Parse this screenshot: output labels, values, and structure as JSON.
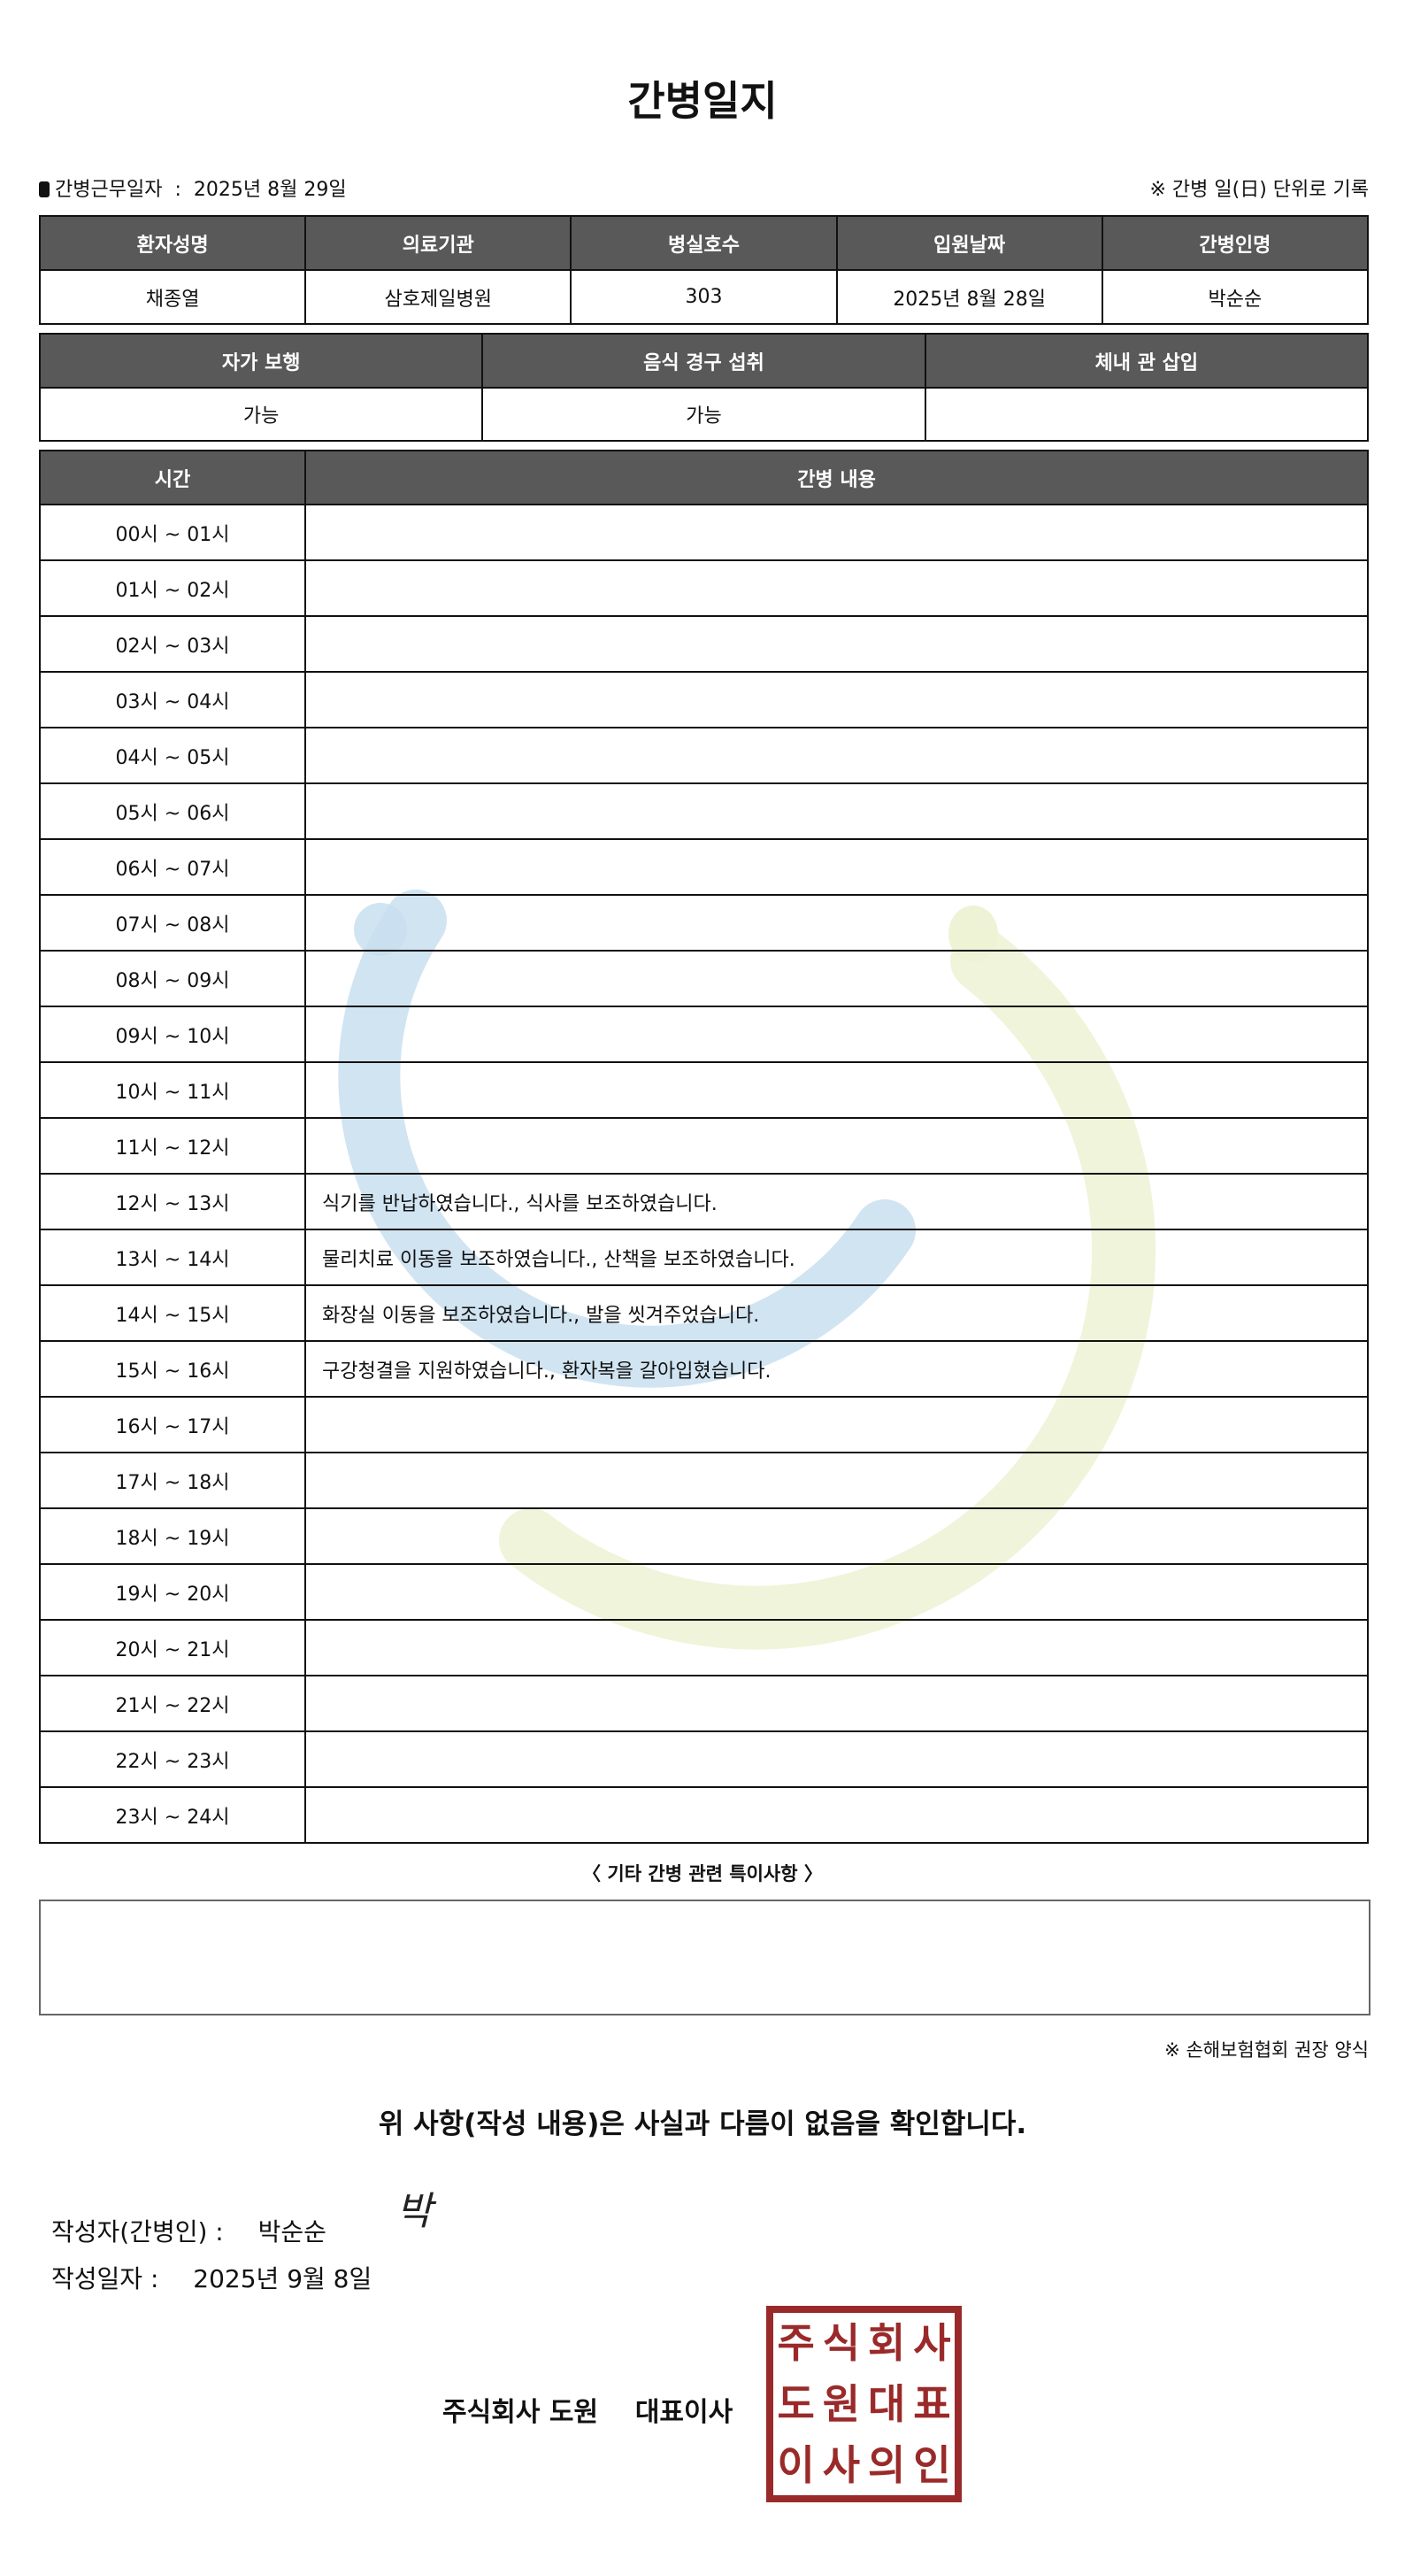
{
  "title": "간병일지",
  "info": {
    "label": "간병근무일자",
    "sep": ":",
    "value": "2025년 8월 29일",
    "note": "※ 간병 일(日) 단위로 기록"
  },
  "table1": {
    "headers": [
      "환자성명",
      "의료기관",
      "병실호수",
      "입원날짜",
      "간병인명"
    ],
    "values": [
      "채종열",
      "삼호제일병원",
      "303",
      "2025년 8월 28일",
      "박순순"
    ]
  },
  "table2": {
    "headers": [
      "자가 보행",
      "음식 경구 섭취",
      "체내 관 삽입"
    ],
    "values": [
      "가능",
      "가능",
      ""
    ]
  },
  "table3": {
    "headers": [
      "시간",
      "간병 내용"
    ],
    "rows": [
      {
        "time": "00시 ~ 01시",
        "content": ""
      },
      {
        "time": "01시 ~ 02시",
        "content": ""
      },
      {
        "time": "02시 ~ 03시",
        "content": ""
      },
      {
        "time": "03시 ~ 04시",
        "content": ""
      },
      {
        "time": "04시 ~ 05시",
        "content": ""
      },
      {
        "time": "05시 ~ 06시",
        "content": ""
      },
      {
        "time": "06시 ~ 07시",
        "content": ""
      },
      {
        "time": "07시 ~ 08시",
        "content": ""
      },
      {
        "time": "08시 ~ 09시",
        "content": ""
      },
      {
        "time": "09시 ~ 10시",
        "content": ""
      },
      {
        "time": "10시 ~ 11시",
        "content": ""
      },
      {
        "time": "11시 ~ 12시",
        "content": ""
      },
      {
        "time": "12시 ~ 13시",
        "content": "식기를 반납하였습니다., 식사를 보조하였습니다."
      },
      {
        "time": "13시 ~ 14시",
        "content": "물리치료 이동을 보조하였습니다., 산책을 보조하였습니다."
      },
      {
        "time": "14시 ~ 15시",
        "content": "화장실 이동을 보조하였습니다., 발을 씻겨주었습니다."
      },
      {
        "time": "15시 ~ 16시",
        "content": "구강청결을 지원하였습니다., 환자복을 갈아입혔습니다."
      },
      {
        "time": "16시 ~ 17시",
        "content": ""
      },
      {
        "time": "17시 ~ 18시",
        "content": ""
      },
      {
        "time": "18시 ~ 19시",
        "content": ""
      },
      {
        "time": "19시 ~ 20시",
        "content": ""
      },
      {
        "time": "20시 ~ 21시",
        "content": ""
      },
      {
        "time": "21시 ~ 22시",
        "content": ""
      },
      {
        "time": "22시 ~ 23시",
        "content": ""
      },
      {
        "time": "23시 ~ 24시",
        "content": ""
      }
    ]
  },
  "etc": {
    "label": "〈 기타 간병 관련 특이사항 〉",
    "value": ""
  },
  "association_note": "※ 손해보험협회 권장 양식",
  "confirmation": "위 사항(작성 내용)은 사실과 다름이 없음을 확인합니다.",
  "writer": {
    "label": "작성자(간병인) :",
    "name": "박순순",
    "signature": "박"
  },
  "written_date": {
    "label": "작성일자 :",
    "value": "2025년 9월 8일"
  },
  "company": "주식회사 도원    대표이사",
  "stamp": {
    "text": "주식회사도원대표이사의인",
    "color": "#9a2a2a"
  },
  "colors": {
    "header_bg": "#595959",
    "watermark_blue": "#c9dff0",
    "watermark_green": "#eef3d6"
  }
}
